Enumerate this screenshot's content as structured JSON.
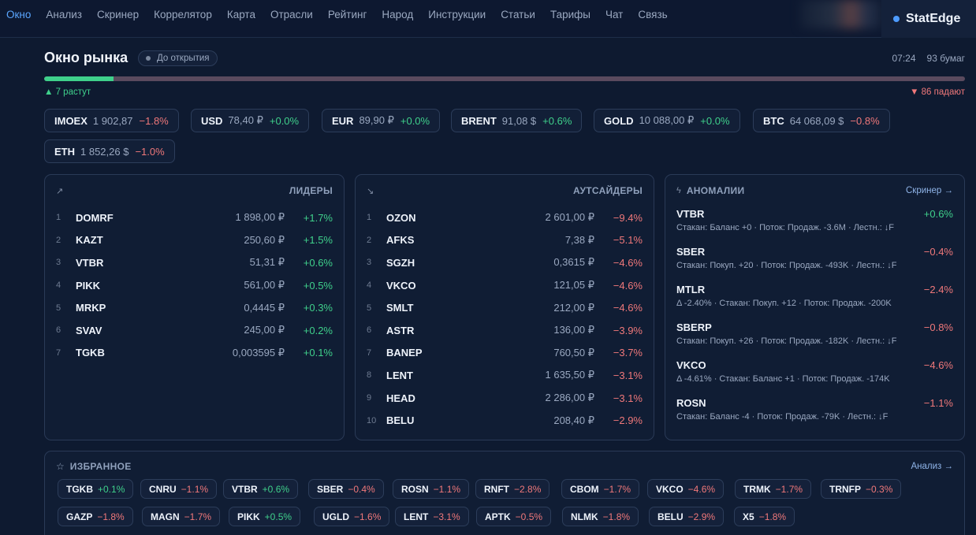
{
  "nav": {
    "items": [
      "Окно",
      "Анализ",
      "Скринер",
      "Коррелятор",
      "Карта",
      "Отрасли",
      "Рейтинг",
      "Народ",
      "Инструкции",
      "Статьи",
      "Тарифы",
      "Чат",
      "Связь"
    ],
    "active_index": 0,
    "brand": "StatEdge"
  },
  "header": {
    "title": "Окно рынка",
    "status": "До открытия",
    "time": "07:24",
    "count": "93 бумаг",
    "rising": "▲ 7 растут",
    "falling": "▼ 86 падают",
    "rising_count": 7,
    "falling_count": 86
  },
  "tickers": [
    {
      "sym": "IMOEX",
      "val": "1 902,87",
      "chg": "−1.8%",
      "dir": "neg"
    },
    {
      "sym": "USD",
      "val": "78,40 ₽",
      "chg": "+0.0%",
      "dir": "pos"
    },
    {
      "sym": "EUR",
      "val": "89,90 ₽",
      "chg": "+0.0%",
      "dir": "pos"
    },
    {
      "sym": "BRENT",
      "val": "91,08 $",
      "chg": "+0.6%",
      "dir": "pos"
    },
    {
      "sym": "GOLD",
      "val": "10 088,00 ₽",
      "chg": "+0.0%",
      "dir": "pos"
    },
    {
      "sym": "BTC",
      "val": "64 068,09 $",
      "chg": "−0.8%",
      "dir": "neg"
    },
    {
      "sym": "ETH",
      "val": "1 852,26 $",
      "chg": "−1.0%",
      "dir": "neg"
    }
  ],
  "leaders": {
    "title": "ЛИДЕРЫ",
    "icon": "trend-up-icon",
    "rows": [
      {
        "i": "1",
        "sym": "DOMRF",
        "price": "1 898,00 ₽",
        "chg": "+1.7%"
      },
      {
        "i": "2",
        "sym": "KAZT",
        "price": "250,60 ₽",
        "chg": "+1.5%"
      },
      {
        "i": "3",
        "sym": "VTBR",
        "price": "51,31 ₽",
        "chg": "+0.6%"
      },
      {
        "i": "4",
        "sym": "PIKK",
        "price": "561,00 ₽",
        "chg": "+0.5%"
      },
      {
        "i": "5",
        "sym": "MRKP",
        "price": "0,4445 ₽",
        "chg": "+0.3%"
      },
      {
        "i": "6",
        "sym": "SVAV",
        "price": "245,00 ₽",
        "chg": "+0.2%"
      },
      {
        "i": "7",
        "sym": "TGKB",
        "price": "0,003595 ₽",
        "chg": "+0.1%"
      }
    ]
  },
  "outsiders": {
    "title": "АУТСАЙДЕРЫ",
    "icon": "trend-down-icon",
    "rows": [
      {
        "i": "1",
        "sym": "OZON",
        "price": "2 601,00 ₽",
        "chg": "−9.4%"
      },
      {
        "i": "2",
        "sym": "AFKS",
        "price": "7,38 ₽",
        "chg": "−5.1%"
      },
      {
        "i": "3",
        "sym": "SGZH",
        "price": "0,3615 ₽",
        "chg": "−4.6%"
      },
      {
        "i": "4",
        "sym": "VKCO",
        "price": "121,05 ₽",
        "chg": "−4.6%"
      },
      {
        "i": "5",
        "sym": "SMLT",
        "price": "212,00 ₽",
        "chg": "−4.6%"
      },
      {
        "i": "6",
        "sym": "ASTR",
        "price": "136,00 ₽",
        "chg": "−3.9%"
      },
      {
        "i": "7",
        "sym": "BANEP",
        "price": "760,50 ₽",
        "chg": "−3.7%"
      },
      {
        "i": "8",
        "sym": "LENT",
        "price": "1 635,50 ₽",
        "chg": "−3.1%"
      },
      {
        "i": "9",
        "sym": "HEAD",
        "price": "2 286,00 ₽",
        "chg": "−3.1%"
      },
      {
        "i": "10",
        "sym": "BELU",
        "price": "208,40 ₽",
        "chg": "−2.9%"
      }
    ]
  },
  "anomalies": {
    "title": "АНОМАЛИИ",
    "icon": "lightning-icon",
    "link": "Скринер →",
    "rows": [
      {
        "sym": "VTBR",
        "chg": "+0.6%",
        "dir": "pos",
        "desc": "Стакан: Баланс +0 · Поток: Продаж. -3.6M · Лестн.: ↓F"
      },
      {
        "sym": "SBER",
        "chg": "−0.4%",
        "dir": "neg",
        "desc": "Стакан: Покуп. +20 · Поток: Продаж. -493K · Лестн.: ↓F"
      },
      {
        "sym": "MTLR",
        "chg": "−2.4%",
        "dir": "neg",
        "desc": "Δ -2.40% · Стакан: Покуп. +12 · Поток: Продаж. -200K"
      },
      {
        "sym": "SBERP",
        "chg": "−0.8%",
        "dir": "neg",
        "desc": "Стакан: Покуп. +26 · Поток: Продаж. -182K · Лестн.: ↓F"
      },
      {
        "sym": "VKCO",
        "chg": "−4.6%",
        "dir": "neg",
        "desc": "Δ -4.61% · Стакан: Баланс +1 · Поток: Продаж. -174K"
      },
      {
        "sym": "ROSN",
        "chg": "−1.1%",
        "dir": "neg",
        "desc": "Стакан: Баланс -4 · Поток: Продаж. -79K · Лестн.: ↓F"
      }
    ]
  },
  "favorites": {
    "title": "ИЗБРАННОЕ",
    "icon": "star-icon",
    "link": "Анализ →",
    "chips": [
      {
        "sym": "TGKB",
        "chg": "+0.1%",
        "dir": "pos"
      },
      {
        "sym": "CNRU",
        "chg": "−1.1%",
        "dir": "neg"
      },
      {
        "sym": "VTBR",
        "chg": "+0.6%",
        "dir": "pos"
      },
      {
        "sym": "SBER",
        "chg": "−0.4%",
        "dir": "neg"
      },
      {
        "sym": "ROSN",
        "chg": "−1.1%",
        "dir": "neg"
      },
      {
        "sym": "RNFT",
        "chg": "−2.8%",
        "dir": "neg"
      },
      {
        "sym": "CBOM",
        "chg": "−1.7%",
        "dir": "neg"
      },
      {
        "sym": "VKCO",
        "chg": "−4.6%",
        "dir": "neg"
      },
      {
        "sym": "TRMK",
        "chg": "−1.7%",
        "dir": "neg"
      },
      {
        "sym": "TRNFP",
        "chg": "−0.3%",
        "dir": "neg"
      },
      {
        "sym": "GAZP",
        "chg": "−1.8%",
        "dir": "neg"
      },
      {
        "sym": "MAGN",
        "chg": "−1.7%",
        "dir": "neg"
      },
      {
        "sym": "PIKK",
        "chg": "+0.5%",
        "dir": "pos"
      },
      {
        "sym": "UGLD",
        "chg": "−1.6%",
        "dir": "neg"
      },
      {
        "sym": "LENT",
        "chg": "−3.1%",
        "dir": "neg"
      },
      {
        "sym": "APTK",
        "chg": "−0.5%",
        "dir": "neg"
      },
      {
        "sym": "NLMK",
        "chg": "−1.8%",
        "dir": "neg"
      },
      {
        "sym": "BELU",
        "chg": "−2.9%",
        "dir": "neg"
      },
      {
        "sym": "X5",
        "chg": "−1.8%",
        "dir": "neg"
      }
    ]
  },
  "colors": {
    "background": "#0e1a30",
    "positive": "#3fd08b",
    "negative": "#f0787a",
    "accent": "#5aa6ff"
  }
}
